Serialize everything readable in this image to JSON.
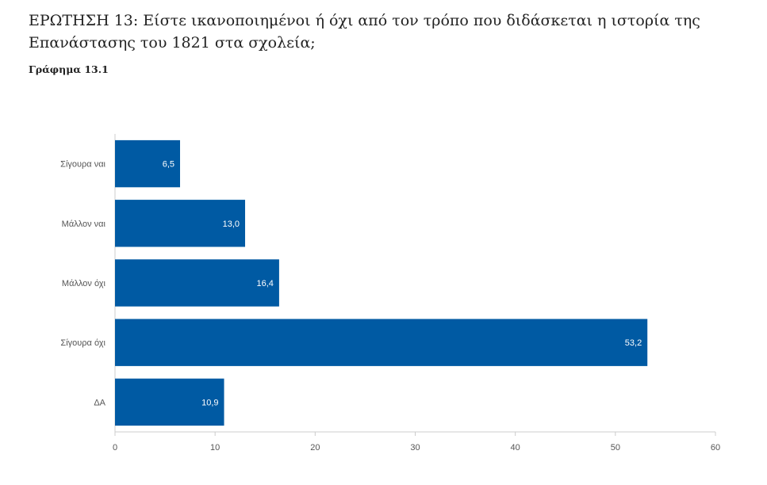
{
  "header": {
    "title": "ΕΡΩΤΗΣΗ 13: Είστε ικανοποιημένοι ή όχι από τον τρόπο που διδάσκεται η ιστορία της Επανάστασης του 1821 στα σχολεία;",
    "subtitle": "Γράφημα 13.1"
  },
  "colors": {
    "bar": "#005aa3",
    "axis": "#cccccc",
    "text": "#555555"
  },
  "chart_data": {
    "type": "bar",
    "orientation": "horizontal",
    "categories": [
      "Σίγουρα ναι",
      "Μάλλον ναι",
      "Μάλλον όχι",
      "Σίγουρα όχι",
      "ΔΑ"
    ],
    "values": [
      6.5,
      13.0,
      16.4,
      53.2,
      10.9
    ],
    "value_labels": [
      "6,5",
      "13,0",
      "16,4",
      "53,2",
      "10,9"
    ],
    "xlim": [
      0,
      60
    ],
    "xticks": [
      0,
      10,
      20,
      30,
      40,
      50,
      60
    ],
    "grid": false
  }
}
